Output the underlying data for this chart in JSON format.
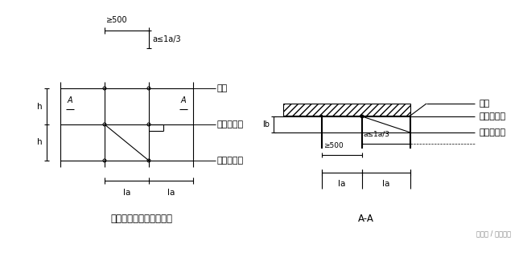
{
  "bg_color": "#ffffff",
  "line_color": "#000000",
  "text_color": "#000000",
  "fig_width": 6.5,
  "fig_height": 3.4,
  "dpi": 100,
  "left": {
    "title": "接头不在同步内（立面）",
    "label_A": "A",
    "label_h1": "h",
    "label_h2": "h",
    "label_ge500": "≥500",
    "label_a": "a≤1a/3",
    "label_li": "立杆",
    "label_zong": "纵向水平杆",
    "label_heng": "横向水平杆",
    "label_la1": "la",
    "label_la2": "la"
  },
  "right": {
    "title": "A-A",
    "label_lb": "lb",
    "label_ge500": "≥500",
    "label_a": "a≤1a/3",
    "label_li": "立杆",
    "label_zong": "纵向水平杆",
    "label_heng": "横向水平杆",
    "label_la1": "la",
    "label_la2": "la"
  },
  "watermark": "头条号 / 小熊一品"
}
